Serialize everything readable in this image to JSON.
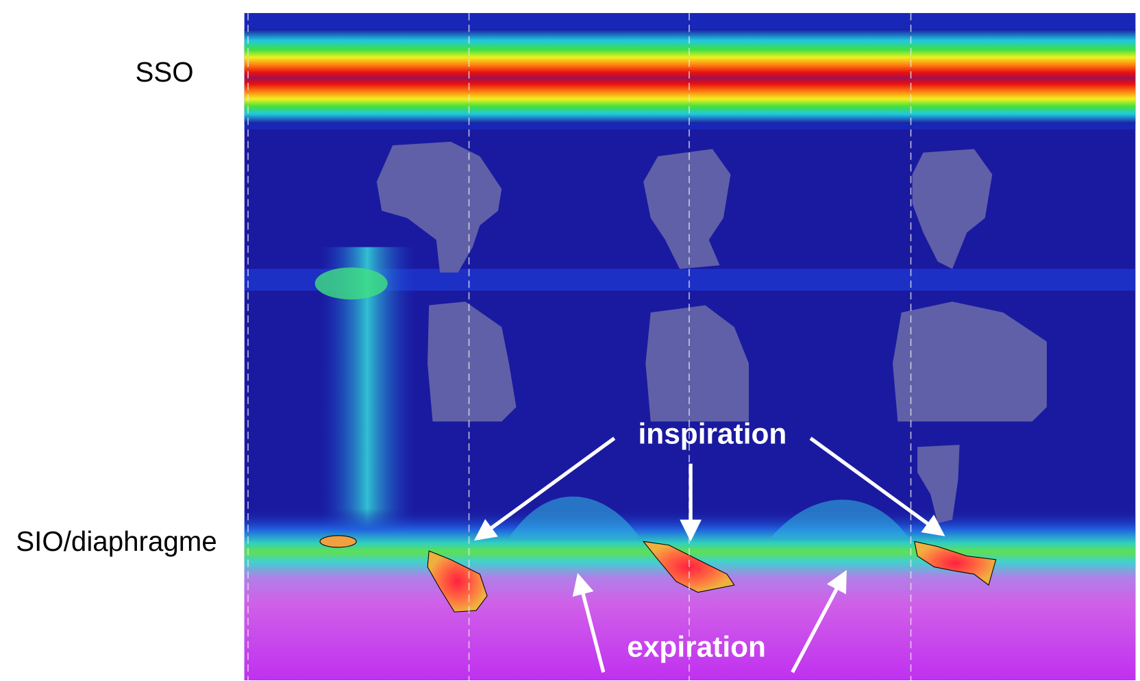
{
  "labels": {
    "upper": "SSO",
    "lower": "SIO/diaphragme"
  },
  "annotations": {
    "inspiration": "inspiration",
    "expiration": "expiration"
  }
}
